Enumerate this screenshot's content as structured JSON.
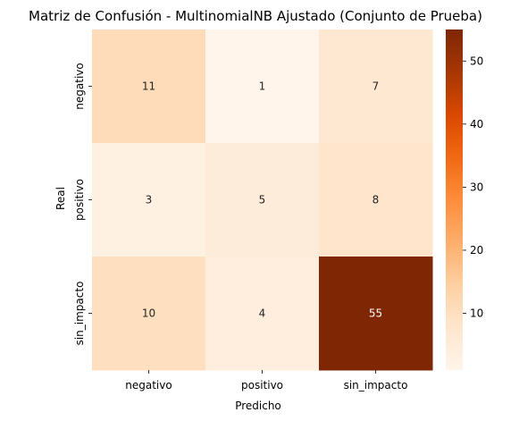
{
  "chart_data": {
    "type": "heatmap",
    "title": "Matriz de Confusión - MultinomialNB Ajustado (Conjunto de Prueba)",
    "xlabel": "Predicho",
    "ylabel": "Real",
    "x_categories": [
      "negativo",
      "positivo",
      "sin_impacto"
    ],
    "y_categories": [
      "negativo",
      "positivo",
      "sin_impacto"
    ],
    "values": [
      [
        11,
        1,
        7
      ],
      [
        3,
        5,
        8
      ],
      [
        10,
        4,
        55
      ]
    ],
    "colormap": "Oranges",
    "color_range": [
      1,
      55
    ],
    "colorbar_ticks": [
      10,
      20,
      30,
      40,
      50
    ],
    "annotation_dark_text": "#262626",
    "annotation_light_text": "#ffffff"
  }
}
